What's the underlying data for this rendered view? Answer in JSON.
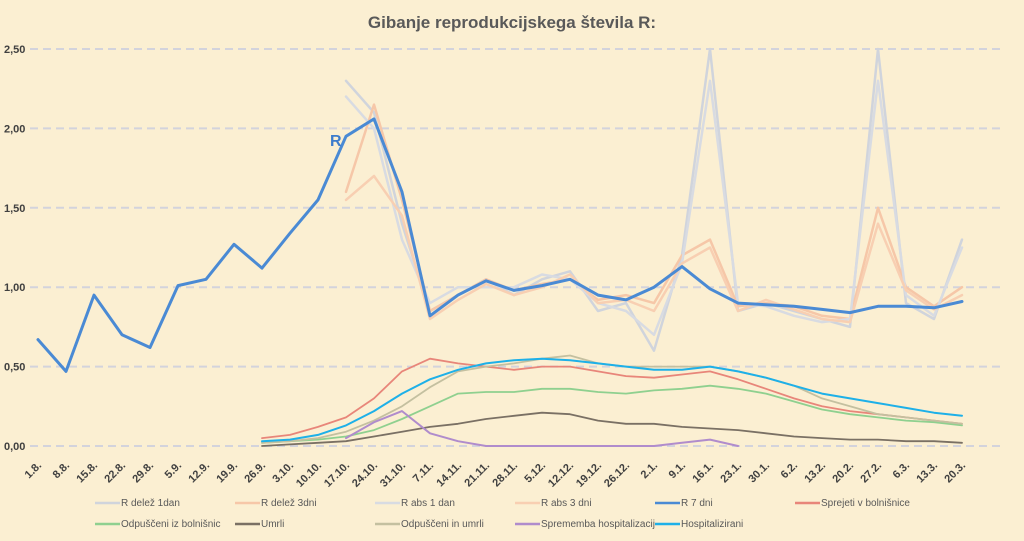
{
  "chart_data": {
    "type": "line",
    "title": "Gibanje reprodukcijskega števila R:",
    "annotation": "R",
    "xlabel": "",
    "ylabel": "",
    "ylim": [
      0,
      2.5
    ],
    "yticks": [
      "0,00",
      "0,50",
      "1,00",
      "1,50",
      "2,00",
      "2,50"
    ],
    "grid": true,
    "legend_position": "bottom",
    "categories": [
      "1.8.",
      "8.8.",
      "15.8.",
      "22.8.",
      "29.8.",
      "5.9.",
      "12.9.",
      "19.9.",
      "26.9.",
      "3.10.",
      "10.10.",
      "17.10.",
      "24.10.",
      "31.10.",
      "7.11.",
      "14.11.",
      "21.11.",
      "28.11.",
      "5.12.",
      "12.12.",
      "19.12.",
      "26.12.",
      "2.1.",
      "9.1.",
      "16.1.",
      "23.1.",
      "30.1.",
      "6.2.",
      "13.2.",
      "20.2.",
      "27.2.",
      "6.3.",
      "13.3.",
      "20.3."
    ],
    "series": [
      {
        "name": "R delež 1dan",
        "color": "#d0d4dc",
        "width": 2.5,
        "values": [
          null,
          null,
          null,
          null,
          null,
          null,
          null,
          null,
          null,
          null,
          null,
          2.3,
          2.1,
          1.4,
          0.85,
          0.95,
          1.05,
          0.95,
          1.05,
          1.1,
          0.85,
          0.9,
          0.6,
          1.2,
          2.5,
          0.85,
          0.9,
          0.85,
          0.8,
          0.75,
          2.5,
          0.9,
          0.8,
          1.3
        ]
      },
      {
        "name": "R delež 3dni",
        "color": "#f6c7a8",
        "width": 2.5,
        "values": [
          null,
          null,
          null,
          null,
          null,
          null,
          null,
          null,
          null,
          null,
          null,
          1.6,
          2.15,
          1.55,
          0.85,
          0.95,
          1.05,
          0.98,
          1.02,
          1.05,
          0.92,
          0.95,
          0.9,
          1.2,
          1.3,
          0.88,
          0.9,
          0.88,
          0.82,
          0.8,
          1.5,
          1.0,
          0.88,
          1.0
        ]
      },
      {
        "name": "R abs 1 dan",
        "color": "#d8dbe2",
        "width": 2.5,
        "values": [
          null,
          null,
          null,
          null,
          null,
          null,
          null,
          null,
          null,
          null,
          null,
          2.2,
          2.0,
          1.3,
          0.9,
          1.0,
          1.0,
          1.0,
          1.08,
          1.05,
          0.9,
          0.85,
          0.7,
          1.15,
          2.3,
          0.9,
          0.88,
          0.82,
          0.78,
          0.8,
          2.3,
          0.95,
          0.82,
          1.25
        ]
      },
      {
        "name": "R abs 3 dni",
        "color": "#f8cfb2",
        "width": 2.5,
        "values": [
          null,
          null,
          null,
          null,
          null,
          null,
          null,
          null,
          null,
          null,
          null,
          1.55,
          1.7,
          1.45,
          0.8,
          0.92,
          1.02,
          0.95,
          1.0,
          1.08,
          0.9,
          0.92,
          0.85,
          1.15,
          1.25,
          0.85,
          0.92,
          0.86,
          0.8,
          0.78,
          1.4,
          0.98,
          0.86,
          0.95
        ]
      },
      {
        "name": "R 7 dni",
        "color": "#4a8ad4",
        "width": 3,
        "values": [
          0.67,
          0.47,
          0.95,
          0.7,
          0.62,
          1.01,
          1.05,
          1.27,
          1.12,
          1.34,
          1.55,
          1.95,
          2.06,
          1.6,
          0.82,
          0.95,
          1.04,
          0.98,
          1.01,
          1.05,
          0.95,
          0.92,
          1.0,
          1.13,
          0.99,
          0.9,
          0.89,
          0.88,
          0.86,
          0.84,
          0.88,
          0.88,
          0.87,
          0.91
        ]
      },
      {
        "name": "Sprejeti v bolnišnice",
        "color": "#e8867a",
        "width": 1.8,
        "values": [
          null,
          null,
          null,
          null,
          null,
          null,
          null,
          null,
          0.05,
          0.07,
          0.12,
          0.18,
          0.3,
          0.47,
          0.55,
          0.52,
          0.5,
          0.48,
          0.5,
          0.5,
          0.47,
          0.44,
          0.43,
          0.45,
          0.47,
          0.42,
          0.36,
          0.3,
          0.25,
          0.22,
          0.2,
          0.18,
          0.16,
          0.14
        ]
      },
      {
        "name": "Odpuščeni iz bolnišnic",
        "color": "#8fd08f",
        "width": 1.8,
        "values": [
          null,
          null,
          null,
          null,
          null,
          null,
          null,
          null,
          0.02,
          0.03,
          0.04,
          0.06,
          0.1,
          0.17,
          0.25,
          0.33,
          0.34,
          0.34,
          0.36,
          0.36,
          0.34,
          0.33,
          0.35,
          0.36,
          0.38,
          0.36,
          0.33,
          0.28,
          0.23,
          0.2,
          0.18,
          0.16,
          0.15,
          0.13
        ]
      },
      {
        "name": "Umrli",
        "color": "#7a7064",
        "width": 1.8,
        "values": [
          null,
          null,
          null,
          null,
          null,
          null,
          null,
          null,
          0.0,
          0.01,
          0.02,
          0.03,
          0.06,
          0.09,
          0.12,
          0.14,
          0.17,
          0.19,
          0.21,
          0.2,
          0.16,
          0.14,
          0.14,
          0.12,
          0.11,
          0.1,
          0.08,
          0.06,
          0.05,
          0.04,
          0.04,
          0.03,
          0.03,
          0.02
        ]
      },
      {
        "name": "Odpuščeni in umrli",
        "color": "#c4c0a0",
        "width": 1.8,
        "values": [
          null,
          null,
          null,
          null,
          null,
          null,
          null,
          null,
          0.02,
          0.03,
          0.05,
          0.09,
          0.16,
          0.25,
          0.37,
          0.47,
          0.5,
          0.52,
          0.55,
          0.57,
          0.52,
          0.5,
          0.5,
          0.5,
          0.5,
          0.47,
          0.43,
          0.38,
          0.3,
          0.25,
          0.2,
          0.18,
          0.16,
          0.14
        ]
      },
      {
        "name": "Sprememba hospitalizacij",
        "color": "#b08ccc",
        "width": 2,
        "values": [
          null,
          null,
          null,
          null,
          null,
          null,
          null,
          null,
          null,
          null,
          null,
          0.05,
          0.15,
          0.22,
          0.08,
          0.03,
          0.0,
          0.0,
          0.0,
          0.0,
          0.0,
          0.0,
          0.0,
          0.02,
          0.04,
          0.0,
          null,
          null,
          null,
          null,
          null,
          null,
          null,
          null
        ]
      },
      {
        "name": "Hospitalizirani",
        "color": "#1eb0e8",
        "width": 2,
        "values": [
          null,
          null,
          null,
          null,
          null,
          null,
          null,
          null,
          0.03,
          0.04,
          0.07,
          0.13,
          0.22,
          0.33,
          0.42,
          0.48,
          0.52,
          0.54,
          0.55,
          0.54,
          0.52,
          0.5,
          0.48,
          0.48,
          0.5,
          0.47,
          0.43,
          0.38,
          0.33,
          0.3,
          0.27,
          0.24,
          0.21,
          0.19
        ]
      }
    ]
  }
}
